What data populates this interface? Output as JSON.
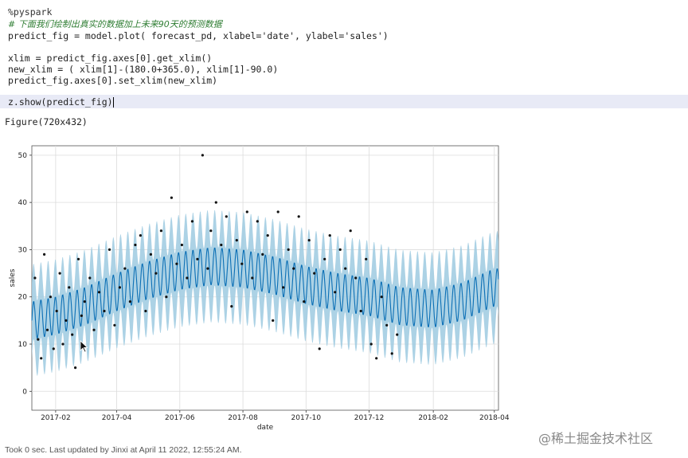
{
  "code": {
    "lines": [
      "%pyspark",
      "# 下面我们绘制出真实的数据加上未来90天的预测数据",
      "predict_fig = model.plot( forecast_pd, xlabel='date', ylabel='sales')",
      "",
      "xlim = predict_fig.axes[0].get_xlim()",
      "new_xlim = ( xlim[1]-(180.0+365.0), xlim[1]-90.0)",
      "predict_fig.axes[0].set_xlim(new_xlim)",
      "",
      "z.show(predict_fig)"
    ]
  },
  "output": {
    "figure_repr": "Figure(720x432)"
  },
  "status": {
    "text": "Took 0 sec. Last updated by Jinxi at April 11 2022, 12:55:24 AM."
  },
  "watermark": "@稀土掘金技术社区",
  "colors": {
    "forecast_line": "#0b6fb5",
    "uncertainty_band": "#9ecae1",
    "observed_points": "#111111"
  },
  "chart_data": {
    "type": "line",
    "xlabel": "date",
    "ylabel": "sales",
    "x_ticks": [
      "2017-02",
      "2017-04",
      "2017-06",
      "2017-08",
      "2017-10",
      "2017-12",
      "2018-02",
      "2018-04"
    ],
    "y_ticks": [
      0,
      10,
      20,
      30,
      40,
      50
    ],
    "ylim": [
      -4,
      52
    ],
    "xlim": [
      "2017-01-09",
      "2018-04-05"
    ],
    "grid": true,
    "series": [
      {
        "kind": "forecast",
        "x": [
          "2017-01-09",
          "2017-02-01",
          "2017-03-01",
          "2017-04-01",
          "2017-05-01",
          "2017-06-01",
          "2017-07-01",
          "2017-08-01",
          "2017-09-01",
          "2017-10-01",
          "2017-11-01",
          "2017-12-01",
          "2017-12-31",
          "2018-02-01",
          "2018-03-01",
          "2018-04-01"
        ],
        "trend": [
          15,
          16,
          18,
          21,
          23.5,
          25.5,
          26.5,
          26,
          24.5,
          22.5,
          21,
          20,
          18,
          17.5,
          19,
          22
        ],
        "weekly_amplitude": 4,
        "band_half_width": 8
      },
      {
        "kind": "observed",
        "x": [
          "2017-01-12",
          "2017-01-15",
          "2017-01-18",
          "2017-01-21",
          "2017-01-24",
          "2017-01-27",
          "2017-01-30",
          "2017-02-02",
          "2017-02-05",
          "2017-02-08",
          "2017-02-11",
          "2017-02-14",
          "2017-02-17",
          "2017-02-20",
          "2017-02-23",
          "2017-02-26",
          "2017-03-01",
          "2017-03-06",
          "2017-03-10",
          "2017-03-15",
          "2017-03-20",
          "2017-03-25",
          "2017-03-30",
          "2017-04-04",
          "2017-04-09",
          "2017-04-14",
          "2017-04-19",
          "2017-04-24",
          "2017-04-29",
          "2017-05-04",
          "2017-05-09",
          "2017-05-14",
          "2017-05-19",
          "2017-05-24",
          "2017-05-29",
          "2017-06-03",
          "2017-06-08",
          "2017-06-13",
          "2017-06-18",
          "2017-06-23",
          "2017-06-28",
          "2017-07-01",
          "2017-07-06",
          "2017-07-11",
          "2017-07-16",
          "2017-07-21",
          "2017-07-26",
          "2017-07-31",
          "2017-08-05",
          "2017-08-10",
          "2017-08-15",
          "2017-08-20",
          "2017-08-25",
          "2017-08-30",
          "2017-09-04",
          "2017-09-09",
          "2017-09-14",
          "2017-09-19",
          "2017-09-24",
          "2017-09-29",
          "2017-10-04",
          "2017-10-09",
          "2017-10-14",
          "2017-10-19",
          "2017-10-24",
          "2017-10-29",
          "2017-11-03",
          "2017-11-08",
          "2017-11-13",
          "2017-11-18",
          "2017-11-23",
          "2017-11-28",
          "2017-12-03",
          "2017-12-08",
          "2017-12-13",
          "2017-12-18",
          "2017-12-23",
          "2017-12-28"
        ],
        "y": [
          24,
          11,
          7,
          29,
          13,
          20,
          9,
          17,
          25,
          10,
          15,
          22,
          12,
          5,
          28,
          16,
          19,
          24,
          13,
          21,
          17,
          30,
          14,
          22,
          26,
          19,
          31,
          33,
          17,
          29,
          25,
          34,
          20,
          41,
          27,
          31,
          24,
          36,
          28,
          50,
          26,
          34,
          40,
          31,
          37,
          18,
          32,
          27,
          38,
          24,
          36,
          29,
          33,
          15,
          38,
          22,
          30,
          26,
          37,
          19,
          32,
          25,
          9,
          28,
          33,
          21,
          30,
          26,
          34,
          24,
          17,
          28,
          10,
          7,
          20,
          14,
          8,
          12
        ]
      }
    ]
  }
}
